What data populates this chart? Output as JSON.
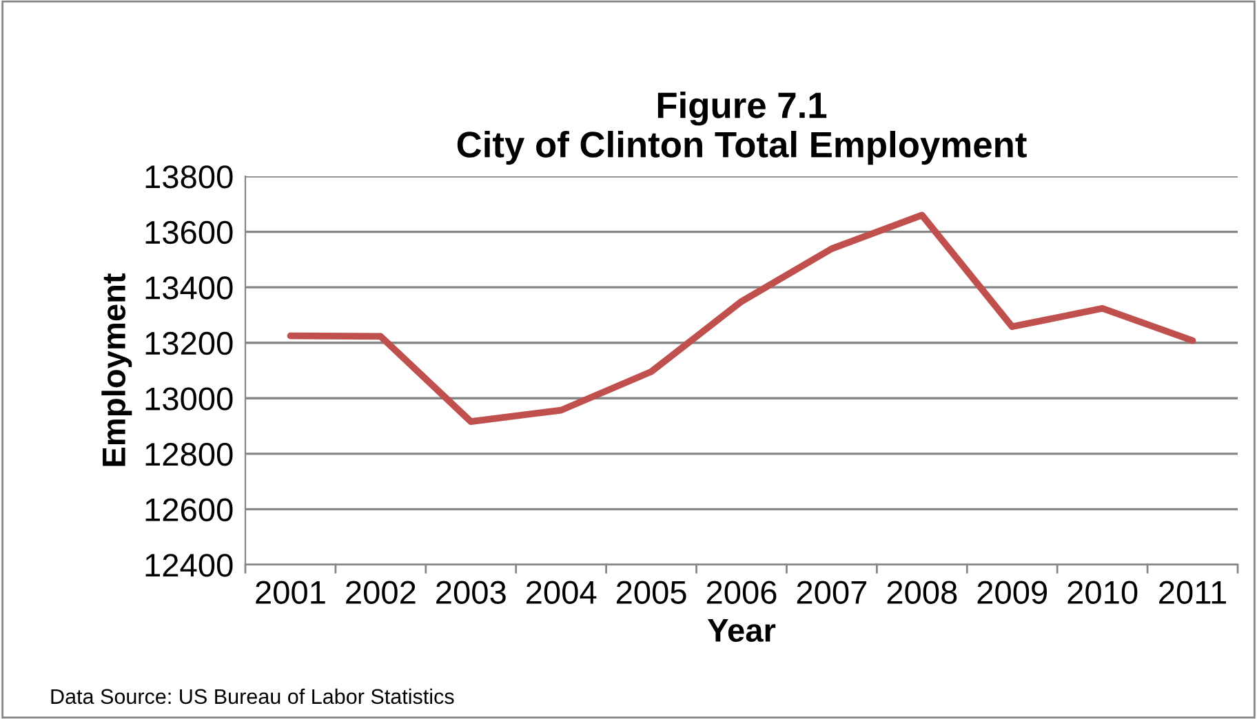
{
  "chart_data": {
    "type": "line",
    "title": "Figure 7.1\nCity of Clinton Total Employment",
    "xlabel": "Year",
    "ylabel": "Employment",
    "categories": [
      "2001",
      "2002",
      "2003",
      "2004",
      "2005",
      "2006",
      "2007",
      "2008",
      "2009",
      "2010",
      "2011"
    ],
    "series": [
      {
        "color": "#c0504d",
        "values": [
          13225,
          13223,
          12916,
          12957,
          13096,
          13349,
          13539,
          13660,
          13258,
          13324,
          13208
        ]
      }
    ],
    "ylim": [
      12400,
      13800
    ],
    "yticks": [
      12400,
      12600,
      12800,
      13000,
      13200,
      13400,
      13600,
      13800
    ],
    "grid": "y",
    "legend": false,
    "marker": "none",
    "line_style": "solid",
    "annotations": [
      "Data Source: US Bureau of Labor Statistics"
    ]
  }
}
